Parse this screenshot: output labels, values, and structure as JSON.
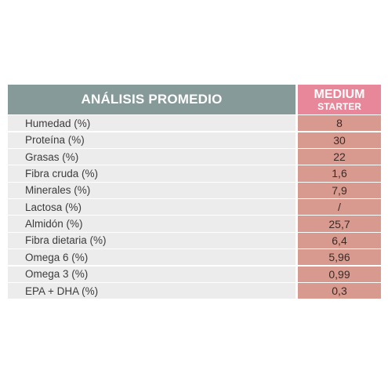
{
  "table": {
    "header": {
      "left": "ANÁLISIS PROMEDIO",
      "right_line1": "MEDIUM",
      "right_line2": "STARTER"
    },
    "rows": [
      {
        "label": "Humedad (%)",
        "value": "8"
      },
      {
        "label": "Proteína (%)",
        "value": "30"
      },
      {
        "label": "Grasas (%)",
        "value": "22"
      },
      {
        "label": "Fibra cruda (%)",
        "value": "1,6"
      },
      {
        "label": "Minerales (%)",
        "value": "7,9"
      },
      {
        "label": "Lactosa (%)",
        "value": "/"
      },
      {
        "label": "Almidón (%)",
        "value": "25,7"
      },
      {
        "label": "Fibra dietaria (%)",
        "value": "6,4"
      },
      {
        "label": "Omega 6 (%)",
        "value": "5,96"
      },
      {
        "label": "Omega 3 (%)",
        "value": "0,99"
      },
      {
        "label": "EPA + DHA (%)",
        "value": "0,3"
      }
    ]
  },
  "colors": {
    "header_left": "#869a99",
    "header_right": "#e9879a",
    "label_bg": "#ececec",
    "value_bg": "#d89a8f"
  }
}
